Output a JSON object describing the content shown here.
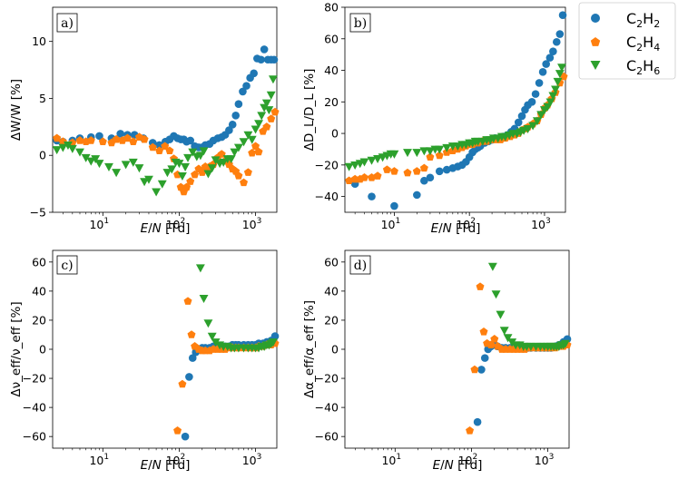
{
  "series_styles": [
    {
      "name": "C2H2",
      "label_base": "C",
      "label_sub1": "2",
      "label_mid": "H",
      "label_sub2": "2",
      "color": "#1f77b4",
      "marker": "circle"
    },
    {
      "name": "C2H4",
      "label_base": "C",
      "label_sub1": "2",
      "label_mid": "H",
      "label_sub2": "4",
      "color": "#ff7f0e",
      "marker": "pentagon"
    },
    {
      "name": "C2H6",
      "label_base": "C",
      "label_sub1": "2",
      "label_mid": "H",
      "label_sub2": "6",
      "color": "#2ca02c",
      "marker": "triangle-down"
    }
  ],
  "chart_data": [
    {
      "panel": "a)",
      "type": "scatter",
      "xscale": "log",
      "xlim": [
        2.2,
        1900
      ],
      "ylim": [
        -5,
        13
      ],
      "yticks": [
        -5,
        0,
        5,
        10
      ],
      "xtick_labels": [
        "10",
        "1",
        "10",
        "2",
        "10",
        "3"
      ],
      "xlabel": {
        "a": "E",
        "b": "/",
        "c": "N",
        "d": " [Td]"
      },
      "ylabel": "ΔW/W [%]",
      "series": [
        {
          "name": "C2H2",
          "x": [
            2.5,
            3,
            4,
            5,
            7,
            9,
            13,
            17,
            21,
            26,
            34,
            45,
            55,
            66,
            75,
            85,
            95,
            105,
            115,
            125,
            140,
            160,
            180,
            200,
            220,
            250,
            280,
            320,
            360,
            400,
            450,
            500,
            550,
            600,
            680,
            760,
            850,
            950,
            1050,
            1180,
            1300,
            1450,
            1600,
            1750
          ],
          "y": [
            1.3,
            1.2,
            1.3,
            1.5,
            1.6,
            1.7,
            1.5,
            1.9,
            1.8,
            1.8,
            1.5,
            1.1,
            0.9,
            1.2,
            1.4,
            1.7,
            1.5,
            1.4,
            1.4,
            1.2,
            1.3,
            0.8,
            0.7,
            0.7,
            0.9,
            1.0,
            1.3,
            1.5,
            1.6,
            1.8,
            2.2,
            2.7,
            3.5,
            4.5,
            5.6,
            6.1,
            6.8,
            7.2,
            8.5,
            8.4,
            9.3,
            8.4,
            8.4,
            8.4
          ]
        },
        {
          "name": "C2H4",
          "x": [
            2.5,
            3,
            4,
            5,
            6,
            7,
            10,
            13,
            15,
            18,
            21,
            25,
            30,
            35,
            45,
            55,
            65,
            75,
            85,
            95,
            105,
            115,
            125,
            140,
            160,
            180,
            200,
            220,
            250,
            280,
            320,
            360,
            400,
            450,
            500,
            550,
            600,
            700,
            800,
            900,
            1000,
            1100,
            1250,
            1400,
            1600,
            1800
          ],
          "y": [
            1.5,
            1.2,
            1.1,
            1.3,
            1.2,
            1.3,
            1.2,
            1.1,
            1.4,
            1.3,
            1.5,
            1.2,
            1.6,
            1.4,
            0.7,
            0.4,
            0.8,
            0.4,
            -0.3,
            -1.7,
            -2.8,
            -3.2,
            -2.8,
            -2.3,
            -1.7,
            -1.2,
            -1.5,
            -1.0,
            -1.0,
            -0.8,
            -0.2,
            0.1,
            -0.5,
            -0.8,
            -1.2,
            -1.4,
            -1.8,
            -2.4,
            -1.5,
            0.2,
            0.8,
            0.3,
            2.1,
            2.5,
            3.2,
            3.8
          ]
        },
        {
          "name": "C2H6",
          "x": [
            2.5,
            3,
            3.5,
            4,
            5,
            6,
            7,
            8,
            9,
            12,
            15,
            20,
            25,
            30,
            35,
            40,
            50,
            60,
            70,
            80,
            90,
            100,
            110,
            120,
            130,
            150,
            170,
            190,
            210,
            240,
            270,
            300,
            340,
            380,
            430,
            480,
            530,
            600,
            700,
            800,
            900,
            1000,
            1100,
            1200,
            1300,
            1400,
            1500,
            1600,
            1700
          ],
          "y": [
            0.5,
            0.7,
            0.9,
            0.6,
            0.3,
            -0.2,
            -0.5,
            -0.3,
            -0.7,
            -1.0,
            -1.5,
            -0.8,
            -0.6,
            -1.1,
            -2.3,
            -2.1,
            -3.2,
            -2.5,
            -1.5,
            -1.2,
            -0.6,
            -0.7,
            -1.8,
            -1.0,
            -0.2,
            0.3,
            -0.1,
            0.0,
            0.4,
            -1.6,
            -1.1,
            -0.4,
            -0.7,
            -0.6,
            -0.3,
            -0.3,
            0.3,
            0.7,
            1.2,
            1.8,
            1.4,
            2.3,
            2.8,
            3.5,
            4.2,
            4.6,
            4.0,
            5.3,
            6.7
          ]
        }
      ]
    },
    {
      "panel": "b)",
      "type": "scatter",
      "xscale": "log",
      "xlim": [
        2.2,
        1900
      ],
      "ylim": [
        -50,
        80
      ],
      "yticks": [
        -40,
        -20,
        0,
        20,
        40,
        60,
        80
      ],
      "xtick_labels": [
        "10",
        "1",
        "10",
        "2",
        "10",
        "3"
      ],
      "xlabel": {
        "a": "E",
        "b": "/",
        "c": "N",
        "d": " [Td]"
      },
      "ylabel": "ΔD_L/D_L [%]",
      "series": [
        {
          "name": "C2H2",
          "x": [
            3,
            5,
            10,
            20,
            25,
            30,
            40,
            50,
            60,
            70,
            80,
            90,
            100,
            110,
            120,
            130,
            140,
            160,
            180,
            200,
            220,
            250,
            280,
            320,
            360,
            400,
            450,
            500,
            550,
            600,
            680,
            760,
            850,
            950,
            1050,
            1180,
            1300,
            1450,
            1600,
            1750
          ],
          "y": [
            -32,
            -40,
            -46,
            -39,
            -30,
            -28,
            -24,
            -23,
            -22,
            -21,
            -20,
            -18,
            -15,
            -12,
            -10,
            -9,
            -8,
            -6,
            -5,
            -4,
            -3,
            -3,
            -2,
            -1,
            1,
            3,
            7,
            11,
            15,
            18,
            20,
            25,
            32,
            39,
            44,
            48,
            52,
            58,
            63,
            75
          ]
        },
        {
          "name": "C2H4",
          "x": [
            2.5,
            3,
            3.5,
            4,
            5,
            6,
            8,
            10,
            15,
            20,
            25,
            30,
            40,
            50,
            60,
            70,
            80,
            90,
            100,
            110,
            120,
            130,
            150,
            170,
            200,
            230,
            260,
            300,
            350,
            400,
            450,
            500,
            550,
            600,
            700,
            800,
            900,
            1000,
            1100,
            1250,
            1400,
            1600,
            1800
          ],
          "y": [
            -30,
            -29,
            -29,
            -28,
            -28,
            -27,
            -23,
            -24,
            -25,
            -24,
            -22,
            -15,
            -14,
            -12,
            -11,
            -10,
            -9,
            -8,
            -7,
            -7,
            -6,
            -6,
            -5,
            -5,
            -4,
            -4,
            -4,
            -3,
            -2,
            -1,
            0,
            2,
            3,
            4,
            6,
            8,
            12,
            16,
            18,
            22,
            26,
            32,
            36
          ]
        },
        {
          "name": "C2H6",
          "x": [
            2.5,
            3,
            3.5,
            4,
            5,
            6,
            7,
            8,
            9,
            10,
            15,
            20,
            25,
            30,
            35,
            40,
            50,
            60,
            70,
            80,
            90,
            100,
            110,
            120,
            130,
            150,
            170,
            190,
            210,
            240,
            270,
            300,
            340,
            380,
            430,
            480,
            530,
            600,
            700,
            800,
            900,
            1000,
            1100,
            1200,
            1300,
            1400,
            1500,
            1600,
            1700
          ],
          "y": [
            -21,
            -20,
            -19,
            -18,
            -17,
            -16,
            -15,
            -14,
            -13,
            -13,
            -12,
            -12,
            -11,
            -11,
            -10,
            -10,
            -9,
            -8,
            -8,
            -7,
            -7,
            -6,
            -6,
            -5,
            -5,
            -5,
            -4,
            -4,
            -3,
            -3,
            -2,
            -2,
            -1,
            0,
            0,
            1,
            2,
            3,
            5,
            8,
            12,
            15,
            17,
            20,
            24,
            28,
            33,
            38,
            42
          ]
        }
      ]
    },
    {
      "panel": "c)",
      "type": "scatter",
      "xscale": "log",
      "xlim": [
        2.2,
        1900
      ],
      "ylim": [
        -68,
        68
      ],
      "yticks": [
        -60,
        -40,
        -20,
        0,
        20,
        40,
        60
      ],
      "xtick_labels": [
        "10",
        "1",
        "10",
        "2",
        "10",
        "3"
      ],
      "xlabel": {
        "a": "E",
        "b": "/",
        "c": "N",
        "d": " [Td]"
      },
      "ylabel": "Δν_eff/ν_eff [%]",
      "series": [
        {
          "name": "C2H2",
          "x": [
            120,
            135,
            150,
            165,
            180,
            200,
            220,
            250,
            280,
            320,
            360,
            400,
            450,
            500,
            550,
            600,
            700,
            800,
            900,
            1000,
            1100,
            1250,
            1400,
            1600,
            1800
          ],
          "y": [
            -60,
            -19,
            -6,
            -2,
            0,
            1,
            1,
            1,
            2,
            2,
            2,
            2,
            2,
            3,
            3,
            3,
            3,
            3,
            3,
            3,
            4,
            4,
            5,
            6,
            9
          ]
        },
        {
          "name": "C2H4",
          "x": [
            95,
            110,
            130,
            145,
            160,
            180,
            200,
            220,
            250,
            280,
            320,
            360,
            400,
            450,
            500,
            550,
            600,
            700,
            800,
            900,
            1000,
            1100,
            1250,
            1400,
            1600,
            1800
          ],
          "y": [
            -56,
            -24,
            33,
            10,
            2,
            0,
            -1,
            -1,
            -1,
            0,
            0,
            0,
            0,
            1,
            1,
            1,
            1,
            1,
            1,
            1,
            1,
            2,
            2,
            3,
            3,
            4
          ]
        },
        {
          "name": "C2H6",
          "x": [
            190,
            210,
            240,
            270,
            300,
            340,
            380,
            430,
            480,
            530,
            600,
            700,
            800,
            900,
            1000,
            1100,
            1200,
            1300,
            1400,
            1500,
            1600,
            1700
          ],
          "y": [
            56,
            35,
            18,
            9,
            5,
            3,
            2,
            2,
            1,
            1,
            1,
            1,
            1,
            1,
            1,
            1,
            2,
            2,
            3,
            3,
            4,
            5
          ]
        }
      ]
    },
    {
      "panel": "d)",
      "type": "scatter",
      "xscale": "log",
      "xlim": [
        2.2,
        1900
      ],
      "ylim": [
        -68,
        68
      ],
      "yticks": [
        -60,
        -40,
        -20,
        0,
        20,
        40,
        60
      ],
      "xtick_labels": [
        "10",
        "1",
        "10",
        "2",
        "10",
        "3"
      ],
      "xlabel": {
        "a": "E",
        "b": "/",
        "c": "N",
        "d": " [Td]"
      },
      "ylabel": "Δα_eff/α_eff [%]",
      "series": [
        {
          "name": "C2H2",
          "x": [
            120,
            135,
            150,
            165,
            180,
            200,
            220,
            250,
            280,
            320,
            360,
            400,
            450,
            500,
            550,
            600,
            700,
            800,
            900,
            1000,
            1100,
            1250,
            1400,
            1600,
            1800
          ],
          "y": [
            -50,
            -14,
            -6,
            0,
            2,
            3,
            2,
            1,
            1,
            1,
            1,
            1,
            1,
            1,
            1,
            1,
            1,
            1,
            1,
            1,
            1,
            2,
            3,
            5,
            7
          ]
        },
        {
          "name": "C2H4",
          "x": [
            95,
            110,
            130,
            145,
            160,
            180,
            200,
            220,
            250,
            280,
            320,
            360,
            400,
            450,
            500,
            550,
            600,
            700,
            800,
            900,
            1000,
            1100,
            1250,
            1400,
            1600,
            1800
          ],
          "y": [
            -56,
            -14,
            43,
            12,
            4,
            3,
            7,
            2,
            0,
            0,
            0,
            0,
            0,
            0,
            0,
            1,
            1,
            1,
            1,
            1,
            1,
            1,
            1,
            2,
            2,
            3
          ]
        },
        {
          "name": "C2H6",
          "x": [
            190,
            210,
            240,
            270,
            300,
            340,
            380,
            430,
            480,
            530,
            600,
            700,
            800,
            900,
            1000,
            1100,
            1200,
            1300,
            1400,
            1500,
            1600,
            1700
          ],
          "y": [
            57,
            38,
            24,
            13,
            8,
            5,
            3,
            3,
            2,
            2,
            2,
            2,
            2,
            2,
            2,
            2,
            2,
            2,
            2,
            3,
            3,
            4
          ]
        }
      ]
    }
  ]
}
